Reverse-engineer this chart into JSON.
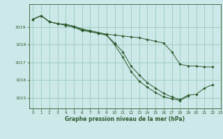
{
  "title": "Graphe pression niveau de la mer (hPa)",
  "bg_color": "#cce8e8",
  "grid_color": "#99ccbb",
  "line_color": "#2d5a2d",
  "marker_color": "#2d5a2d",
  "ylim": [
    1014.4,
    1020.3
  ],
  "xlim": [
    -0.5,
    23
  ],
  "yticks": [
    1015,
    1016,
    1017,
    1018,
    1019
  ],
  "xticks": [
    0,
    1,
    2,
    3,
    4,
    5,
    6,
    7,
    8,
    9,
    10,
    11,
    12,
    13,
    14,
    15,
    16,
    17,
    18,
    19,
    20,
    21,
    22,
    23
  ],
  "series1": [
    1019.45,
    1019.65,
    1019.3,
    1019.2,
    1019.15,
    1019.05,
    1018.9,
    1018.8,
    1018.7,
    1018.6,
    1018.55,
    1018.5,
    1018.45,
    1018.4,
    1018.3,
    1018.2,
    1018.1,
    1017.6,
    1016.9,
    1016.8,
    1016.8,
    1016.75,
    1016.75,
    null
  ],
  "series2": [
    1019.45,
    1019.65,
    1019.3,
    1019.2,
    1019.15,
    1019.05,
    1018.85,
    1018.75,
    1018.65,
    1018.55,
    1018.1,
    1017.6,
    1016.8,
    1016.3,
    1015.85,
    1015.55,
    1015.25,
    1015.05,
    1014.9,
    1015.15,
    1015.2,
    1015.55,
    1015.75,
    null
  ],
  "series3": [
    1019.45,
    1019.65,
    1019.3,
    1019.2,
    1019.1,
    1019.0,
    1018.8,
    1018.75,
    1018.65,
    1018.55,
    1018.0,
    1017.3,
    1016.5,
    1015.95,
    1015.6,
    1015.3,
    1015.05,
    1014.95,
    1014.85,
    1015.1,
    null,
    null,
    null,
    null
  ]
}
